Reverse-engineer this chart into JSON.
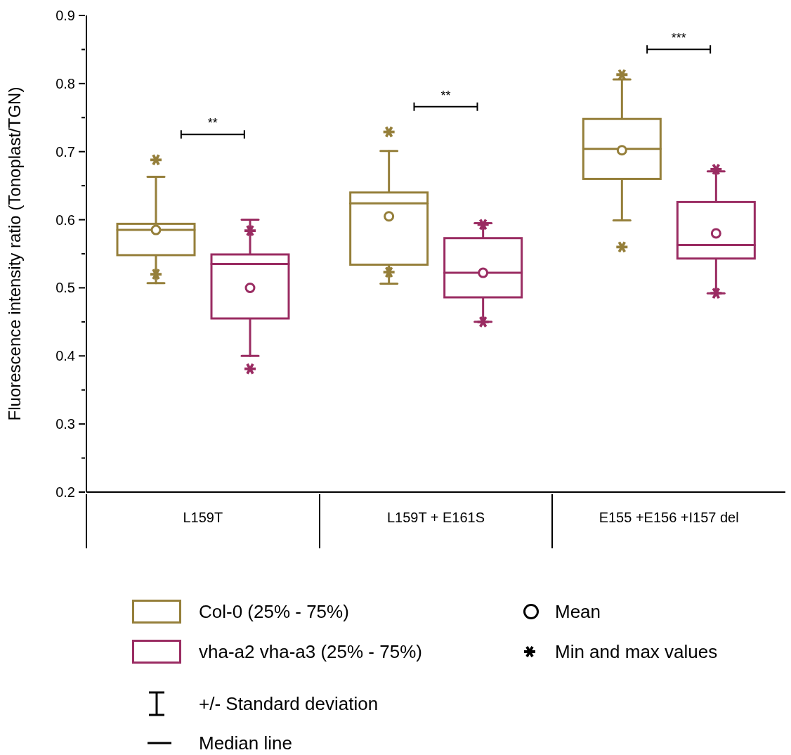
{
  "chart_data": {
    "type": "box",
    "ylabel": "Fluorescence intensity ratio (Tonoplast/TGN)",
    "categories": [
      "L159T",
      "L159T + E161S",
      "E155 +E156 +I157 del"
    ],
    "series": [
      {
        "name": "Col-0 (25% - 75%)",
        "color": "#957f3a",
        "boxes": [
          {
            "low": 0.507,
            "q1": 0.548,
            "median": 0.585,
            "q3": 0.594,
            "high": 0.663,
            "mean": 0.585,
            "outliers": [
              0.52,
              0.688
            ]
          },
          {
            "low": 0.506,
            "q1": 0.534,
            "median": 0.624,
            "q3": 0.64,
            "high": 0.701,
            "mean": 0.605,
            "outliers": [
              0.523,
              0.729
            ]
          },
          {
            "low": 0.599,
            "q1": 0.66,
            "median": 0.704,
            "q3": 0.748,
            "high": 0.806,
            "mean": 0.702,
            "outliers": [
              0.56,
              0.813
            ]
          }
        ]
      },
      {
        "name": "vha-a2 vha-a3 (25% - 75%)",
        "color": "#9a2c62",
        "boxes": [
          {
            "low": 0.4,
            "q1": 0.455,
            "median": 0.535,
            "q3": 0.549,
            "high": 0.6,
            "mean": 0.5,
            "outliers": [
              0.381,
              0.584
            ]
          },
          {
            "low": 0.45,
            "q1": 0.486,
            "median": 0.522,
            "q3": 0.573,
            "high": 0.595,
            "mean": 0.522,
            "outliers": [
              0.45,
              0.593
            ]
          },
          {
            "low": 0.492,
            "q1": 0.543,
            "median": 0.563,
            "q3": 0.626,
            "high": 0.671,
            "mean": 0.58,
            "outliers": [
              0.492,
              0.674
            ]
          }
        ]
      }
    ],
    "ylim": [
      0.2,
      0.9
    ],
    "yticks": [
      0.2,
      {
        "value": 0.25,
        "label": null
      },
      0.3,
      {
        "value": 0.35,
        "label": null
      },
      0.4,
      {
        "value": 0.45,
        "label": null
      },
      0.5,
      {
        "value": 0.55,
        "label": null
      },
      0.6,
      {
        "value": 0.65,
        "label": null
      },
      0.7,
      {
        "value": 0.75,
        "label": null
      },
      0.8,
      {
        "value": 0.85,
        "label": null
      },
      0.9
    ],
    "annotations": [
      "**",
      "**",
      "***",
      "Mean",
      "Min and max values",
      "+/- Standard deviation",
      "Median line"
    ],
    "legend": "bottom"
  }
}
